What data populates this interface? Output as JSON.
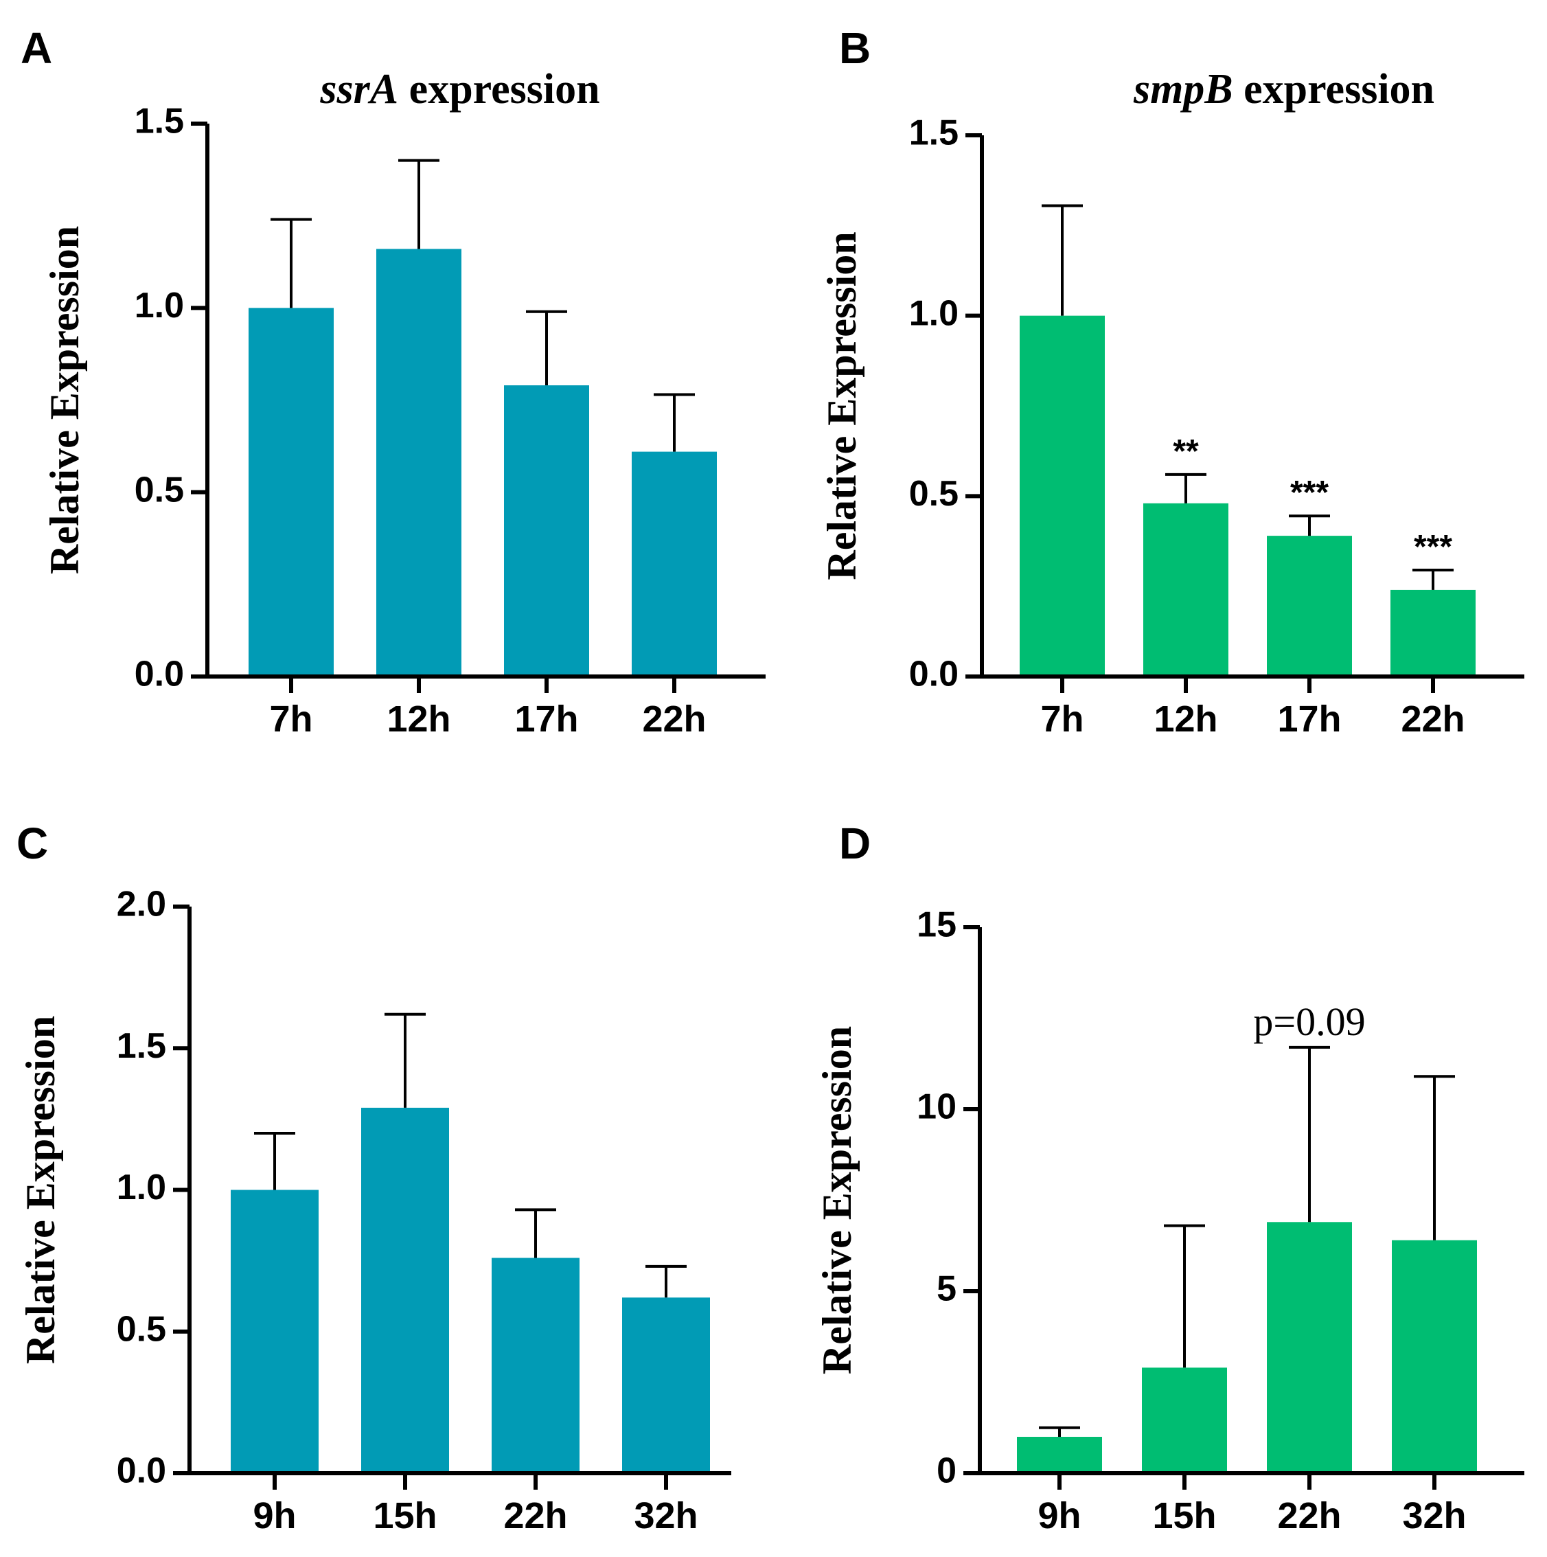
{
  "chart_data": [
    {
      "panel": "A",
      "type": "bar",
      "title_italic": "ssrA",
      "title_rest": " expression",
      "ylabel": "Relative Expression",
      "xlabel": "",
      "categories": [
        "7h",
        "12h",
        "17h",
        "22h"
      ],
      "values": [
        1.0,
        1.16,
        0.79,
        0.61
      ],
      "errors": [
        0.24,
        0.24,
        0.2,
        0.155
      ],
      "annotations": [
        "",
        "",
        "",
        ""
      ],
      "ylim": [
        0,
        1.5
      ],
      "yticks": [
        "0.0",
        "0.5",
        "1.0",
        "1.5"
      ],
      "ytick_values": [
        0,
        0.5,
        1.0,
        1.5
      ],
      "color": "#019bb5"
    },
    {
      "panel": "B",
      "type": "bar",
      "title_italic": "smpB",
      "title_rest": " expression",
      "ylabel": "Relative Expression",
      "xlabel": "",
      "categories": [
        "7h",
        "12h",
        "17h",
        "22h"
      ],
      "values": [
        1.0,
        0.48,
        0.39,
        0.24
      ],
      "errors": [
        0.305,
        0.08,
        0.055,
        0.055
      ],
      "annotations": [
        "",
        "**",
        "***",
        "***"
      ],
      "ylim": [
        0,
        1.5
      ],
      "yticks": [
        "0.0",
        "0.5",
        "1.0",
        "1.5"
      ],
      "ytick_values": [
        0,
        0.5,
        1.0,
        1.5
      ],
      "color": "#00bd72"
    },
    {
      "panel": "C",
      "type": "bar",
      "title_italic": "",
      "title_rest": "",
      "ylabel": "Relative Expression",
      "xlabel": "",
      "categories": [
        "9h",
        "15h",
        "22h",
        "32h"
      ],
      "values": [
        1.0,
        1.29,
        0.76,
        0.62
      ],
      "errors": [
        0.2,
        0.33,
        0.17,
        0.11
      ],
      "annotations": [
        "",
        "",
        "",
        ""
      ],
      "ylim": [
        0,
        2.0
      ],
      "yticks": [
        "0.0",
        "0.5",
        "1.0",
        "1.5",
        "2.0"
      ],
      "ytick_values": [
        0,
        0.5,
        1.0,
        1.5,
        2.0
      ],
      "color": "#019bb5"
    },
    {
      "panel": "D",
      "type": "bar",
      "title_italic": "",
      "title_rest": "",
      "ylabel": "Relative Expression",
      "xlabel": "",
      "categories": [
        "9h",
        "15h",
        "22h",
        "32h"
      ],
      "values": [
        1.0,
        2.9,
        6.9,
        6.4
      ],
      "errors": [
        0.25,
        3.9,
        4.8,
        4.5
      ],
      "annotations": [
        "",
        "",
        "p=0.09",
        ""
      ],
      "ylim": [
        0,
        15
      ],
      "yticks": [
        "0",
        "5",
        "10",
        "15"
      ],
      "ytick_values": [
        0,
        5,
        10,
        15
      ],
      "color": "#00bd72"
    }
  ]
}
